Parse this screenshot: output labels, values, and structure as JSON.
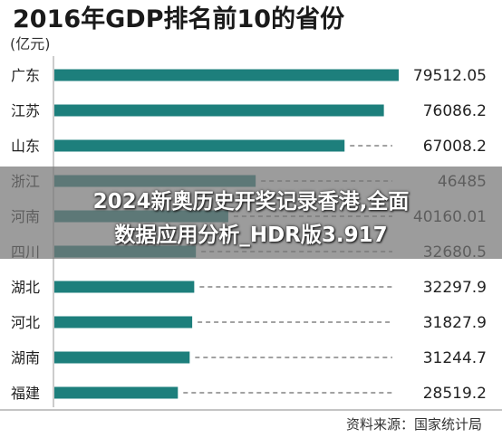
{
  "overlay": {
    "line1": "2024新奥历史开奖记录香港,全面",
    "line2": "数据应用分析_HDR版3.917"
  },
  "chart_data": {
    "type": "bar",
    "orientation": "horizontal",
    "title": "2016年GDP排名前10的省份",
    "unit_label": "(亿元)",
    "source": "资料来源：国家统计局",
    "categories": [
      "广东",
      "江苏",
      "山东",
      "浙江",
      "河南",
      "四川",
      "湖北",
      "河北",
      "湖南",
      "福建"
    ],
    "values": [
      79512.05,
      76086.2,
      67008.2,
      46485,
      40160.01,
      32680.5,
      32297.9,
      31827.9,
      31244.7,
      28519.2
    ],
    "value_labels": [
      "79512.05",
      "76086.2",
      "67008.2",
      "46485",
      "40160.01",
      "32680.5",
      "32297.9",
      "31827.9",
      "31244.7",
      "28519.2"
    ],
    "xlim": [
      0,
      79512.05
    ],
    "bar_color": "#1d7f7c",
    "leader_line_style": "dashed",
    "grid": false,
    "legend": "none"
  }
}
